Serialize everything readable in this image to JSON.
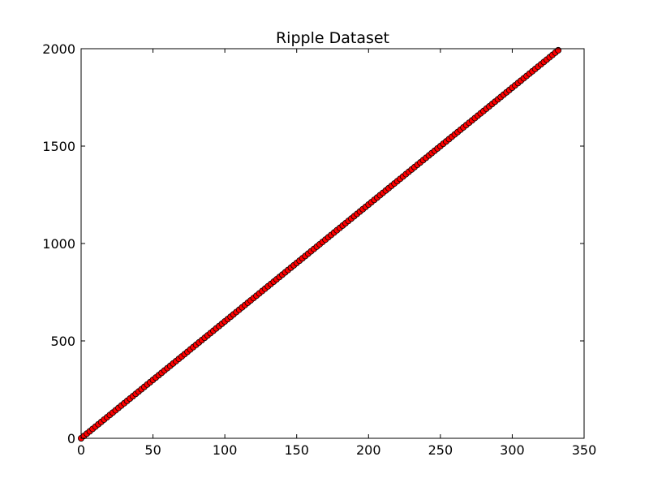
{
  "chart_data": {
    "type": "scatter",
    "title": "Ripple Dataset",
    "xlabel": "",
    "ylabel": "",
    "xlim": [
      0,
      350
    ],
    "ylim": [
      0,
      2000
    ],
    "x_ticks": [
      0,
      50,
      100,
      150,
      200,
      250,
      300,
      350
    ],
    "y_ticks": [
      0,
      500,
      1000,
      1500,
      2000
    ],
    "grid": false,
    "marker_color": "#ff0000",
    "marker_edge_color": "#000000",
    "series": [
      {
        "x": [
          0,
          2,
          4,
          6,
          8,
          10,
          12,
          14,
          16,
          18,
          20,
          22,
          24,
          26,
          28,
          30,
          32,
          34,
          36,
          38,
          40,
          42,
          44,
          46,
          48,
          50,
          52,
          54,
          56,
          58,
          60,
          62,
          64,
          66,
          68,
          70,
          72,
          74,
          76,
          78,
          80,
          82,
          84,
          86,
          88,
          90,
          92,
          94,
          96,
          98,
          100,
          102,
          104,
          106,
          108,
          110,
          112,
          114,
          116,
          118,
          120,
          122,
          124,
          126,
          128,
          130,
          132,
          134,
          136,
          138,
          140,
          142,
          144,
          146,
          148,
          150,
          152,
          154,
          156,
          158,
          160,
          162,
          164,
          166,
          168,
          170,
          172,
          174,
          176,
          178,
          180,
          182,
          184,
          186,
          188,
          190,
          192,
          194,
          196,
          198,
          200,
          202,
          204,
          206,
          208,
          210,
          212,
          214,
          216,
          218,
          220,
          222,
          224,
          226,
          228,
          230,
          232,
          234,
          236,
          238,
          240,
          242,
          244,
          246,
          248,
          250,
          252,
          254,
          256,
          258,
          260,
          262,
          264,
          266,
          268,
          270,
          272,
          274,
          276,
          278,
          280,
          282,
          284,
          286,
          288,
          290,
          292,
          294,
          296,
          298,
          300,
          302,
          304,
          306,
          308,
          310,
          312,
          314,
          316,
          318,
          320,
          322,
          324,
          326,
          328,
          330,
          332
        ],
        "y": [
          0,
          12,
          24,
          36,
          48,
          60,
          72,
          84,
          96,
          108,
          120,
          132,
          144,
          156,
          168,
          180,
          192,
          204,
          216,
          228,
          240,
          252,
          264,
          276,
          288,
          300,
          312,
          324,
          336,
          348,
          360,
          372,
          384,
          396,
          408,
          420,
          432,
          444,
          456,
          468,
          480,
          492,
          504,
          516,
          528,
          540,
          552,
          564,
          576,
          588,
          600,
          612,
          624,
          636,
          648,
          660,
          672,
          684,
          696,
          708,
          720,
          732,
          744,
          756,
          768,
          780,
          792,
          804,
          816,
          828,
          840,
          852,
          864,
          876,
          888,
          900,
          912,
          924,
          936,
          948,
          960,
          972,
          984,
          996,
          1008,
          1020,
          1032,
          1044,
          1056,
          1068,
          1080,
          1092,
          1104,
          1116,
          1128,
          1140,
          1152,
          1164,
          1176,
          1188,
          1200,
          1212,
          1224,
          1236,
          1248,
          1260,
          1272,
          1284,
          1296,
          1308,
          1320,
          1332,
          1344,
          1356,
          1368,
          1380,
          1392,
          1404,
          1416,
          1428,
          1440,
          1452,
          1464,
          1476,
          1488,
          1500,
          1512,
          1524,
          1536,
          1548,
          1560,
          1572,
          1584,
          1596,
          1608,
          1620,
          1632,
          1644,
          1656,
          1668,
          1680,
          1692,
          1704,
          1716,
          1728,
          1740,
          1752,
          1764,
          1776,
          1788,
          1800,
          1812,
          1824,
          1836,
          1848,
          1860,
          1872,
          1884,
          1896,
          1908,
          1920,
          1932,
          1944,
          1956,
          1968,
          1980,
          1992
        ]
      }
    ]
  }
}
